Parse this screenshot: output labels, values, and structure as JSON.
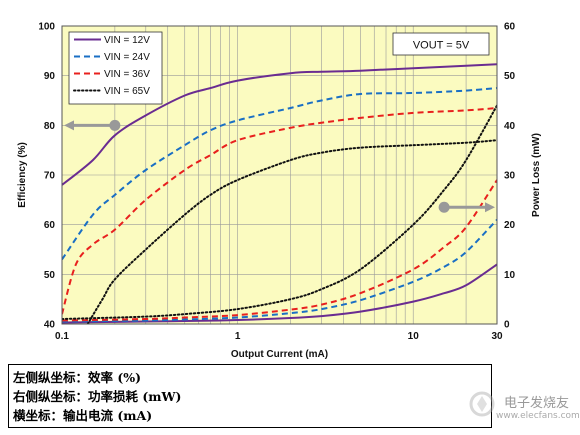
{
  "chart_data": {
    "type": "line",
    "xlabel": "Output Current (mA)",
    "ylabel_left": "Efficiency (%)",
    "ylabel_right": "Power Loss (mW)",
    "x_scale": "log",
    "xlim": [
      0.1,
      30
    ],
    "ylim_left": [
      40,
      100
    ],
    "ylim_right": [
      0,
      60
    ],
    "x_ticks": [
      {
        "value": 0.1,
        "label": "0.1"
      },
      {
        "value": 1,
        "label": "1"
      },
      {
        "value": 10,
        "label": "10"
      },
      {
        "value": 30,
        "label": "30"
      }
    ],
    "y_ticks_left": [
      40,
      50,
      60,
      70,
      80,
      90,
      100
    ],
    "y_ticks_right": [
      0,
      10,
      20,
      30,
      40,
      50,
      60
    ],
    "grid": true,
    "legend_position": "top-left",
    "annotation": "VOUT = 5V",
    "series": [
      {
        "name": "VIN = 12V",
        "color": "#6a2c91",
        "dash": "solid",
        "efficiency": [
          [
            0.1,
            68
          ],
          [
            0.15,
            73
          ],
          [
            0.2,
            78
          ],
          [
            0.3,
            82
          ],
          [
            0.5,
            86
          ],
          [
            0.7,
            87.5
          ],
          [
            1,
            89
          ],
          [
            2,
            90.5
          ],
          [
            3,
            90.8
          ],
          [
            5,
            91
          ],
          [
            10,
            91.5
          ],
          [
            20,
            92
          ],
          [
            30,
            92.3
          ]
        ],
        "power_loss": [
          [
            0.1,
            0.3
          ],
          [
            0.3,
            0.5
          ],
          [
            0.5,
            0.6
          ],
          [
            1,
            0.8
          ],
          [
            2,
            1.2
          ],
          [
            3,
            1.6
          ],
          [
            5,
            2.5
          ],
          [
            10,
            4.5
          ],
          [
            15,
            6.2
          ],
          [
            20,
            7.8
          ],
          [
            30,
            12
          ]
        ]
      },
      {
        "name": "VIN = 24V",
        "color": "#1a6fc4",
        "dash": "dashed",
        "efficiency": [
          [
            0.1,
            53
          ],
          [
            0.15,
            62
          ],
          [
            0.2,
            66
          ],
          [
            0.3,
            71
          ],
          [
            0.5,
            76
          ],
          [
            0.7,
            79
          ],
          [
            1,
            81
          ],
          [
            2,
            83.5
          ],
          [
            3,
            85
          ],
          [
            5,
            86.3
          ],
          [
            10,
            86.5
          ],
          [
            20,
            87
          ],
          [
            30,
            87.5
          ]
        ],
        "power_loss": [
          [
            0.1,
            0.5
          ],
          [
            0.3,
            0.7
          ],
          [
            0.5,
            0.9
          ],
          [
            1,
            1.3
          ],
          [
            2,
            2.2
          ],
          [
            3,
            3.0
          ],
          [
            5,
            4.8
          ],
          [
            10,
            8.5
          ],
          [
            15,
            11.5
          ],
          [
            20,
            14.5
          ],
          [
            30,
            21
          ]
        ]
      },
      {
        "name": "VIN = 36V",
        "color": "#e8201e",
        "dash": "dashed",
        "efficiency": [
          [
            0.1,
            42
          ],
          [
            0.12,
            52
          ],
          [
            0.15,
            56
          ],
          [
            0.2,
            59
          ],
          [
            0.3,
            65
          ],
          [
            0.5,
            71
          ],
          [
            0.7,
            74
          ],
          [
            1,
            77
          ],
          [
            2,
            79.5
          ],
          [
            3,
            80.5
          ],
          [
            5,
            81.5
          ],
          [
            10,
            82.5
          ],
          [
            20,
            83
          ],
          [
            30,
            83.5
          ]
        ],
        "power_loss": [
          [
            0.1,
            0.7
          ],
          [
            0.3,
            1.0
          ],
          [
            0.5,
            1.3
          ],
          [
            1,
            1.8
          ],
          [
            2,
            2.9
          ],
          [
            3,
            3.9
          ],
          [
            5,
            6.2
          ],
          [
            10,
            11
          ],
          [
            15,
            15.5
          ],
          [
            20,
            19.5
          ],
          [
            30,
            29
          ]
        ]
      },
      {
        "name": "VIN = 65V",
        "color": "#111111",
        "dash": "dotted",
        "efficiency": [
          [
            0.14,
            40
          ],
          [
            0.17,
            45
          ],
          [
            0.2,
            49
          ],
          [
            0.3,
            55
          ],
          [
            0.5,
            62
          ],
          [
            0.7,
            66
          ],
          [
            1,
            69
          ],
          [
            2,
            73
          ],
          [
            3,
            74.5
          ],
          [
            5,
            75.5
          ],
          [
            10,
            76
          ],
          [
            20,
            76.5
          ],
          [
            30,
            77
          ]
        ],
        "power_loss": [
          [
            0.1,
            1.0
          ],
          [
            0.3,
            1.5
          ],
          [
            0.5,
            2.0
          ],
          [
            1,
            3.0
          ],
          [
            2,
            5.0
          ],
          [
            3,
            7.0
          ],
          [
            5,
            11
          ],
          [
            10,
            20
          ],
          [
            15,
            27
          ],
          [
            20,
            33
          ],
          [
            30,
            44
          ]
        ]
      }
    ],
    "arrows": [
      {
        "axis": "left",
        "x": 0.2,
        "y": 80,
        "direction": "left"
      },
      {
        "axis": "right",
        "x": 15,
        "y": 23.5,
        "direction": "right"
      }
    ]
  },
  "caption": {
    "line1": "左侧纵坐标：效率 (%)",
    "line2": "右侧纵坐标：功率损耗 (mW)",
    "line3": "横坐标：输出电流 (mA)"
  },
  "watermark": {
    "line1": "电子发烧友",
    "line2": "www.elecfans.com"
  }
}
